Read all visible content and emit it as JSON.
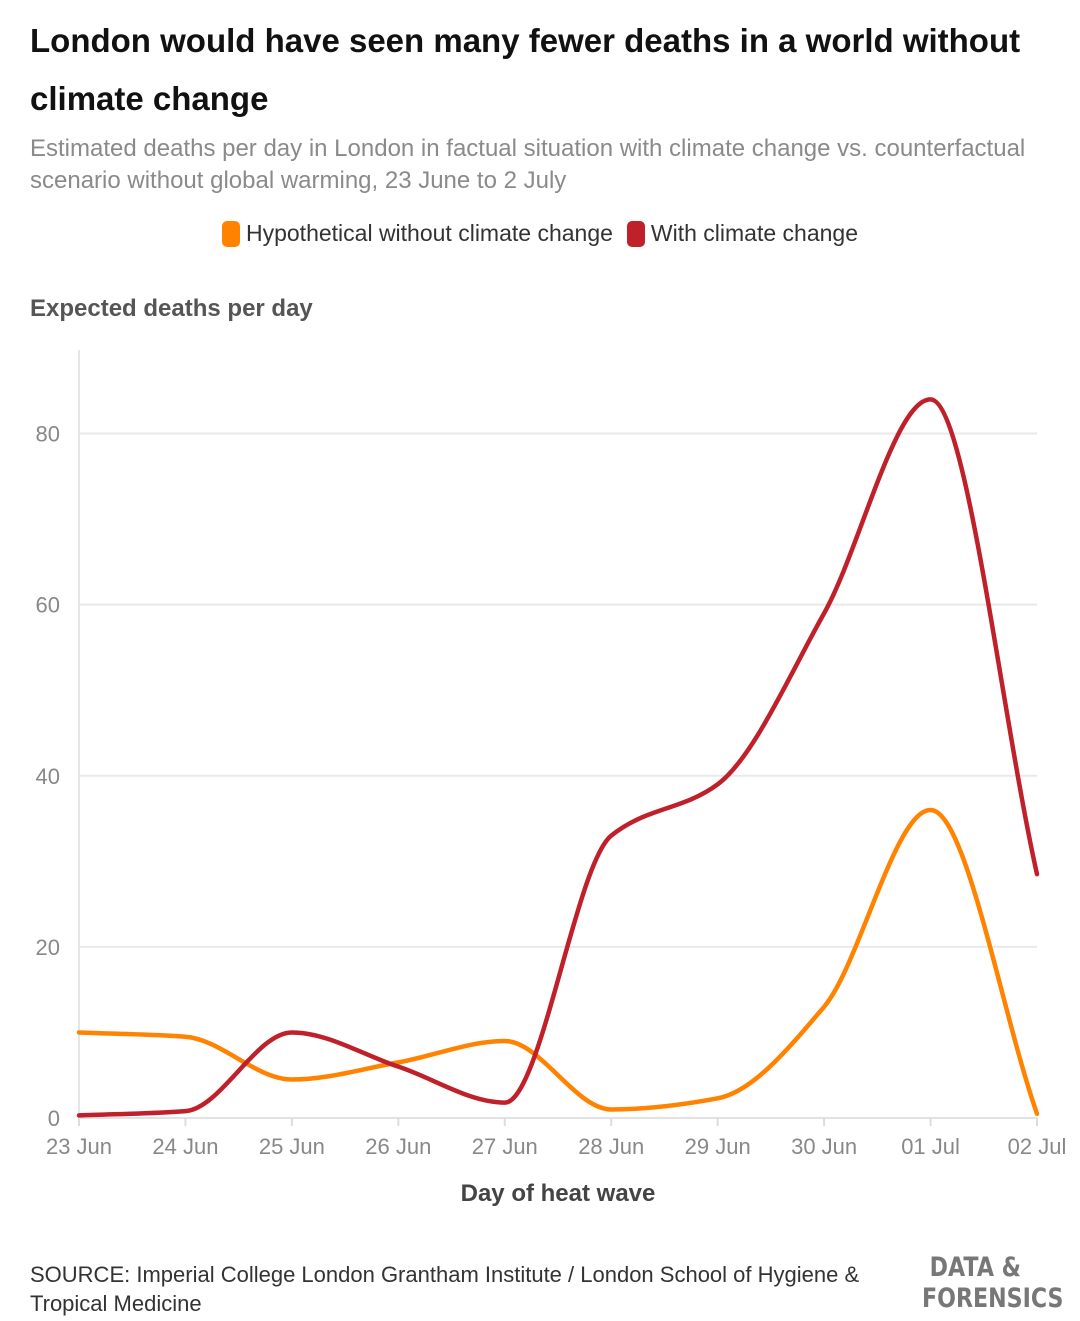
{
  "title": "London would have seen many fewer deaths in a world without climate change",
  "subtitle": "Estimated deaths per day in London in factual situation with climate change vs. counterfactual scenario without global warming, 23 June to 2 July",
  "source": "SOURCE: Imperial College London Grantham Institute / London School of Hygiene & Tropical Medicine",
  "logo": {
    "line1": "DATA &",
    "line2": "FORENSICS"
  },
  "colors": {
    "hypothetical": "#ff8200",
    "with_climate": "#c0202a",
    "grid": "#e9e9e9",
    "axis_text": "#888888"
  },
  "chart_data": {
    "type": "line",
    "xlabel": "Day of heat wave",
    "ylabel": "Expected deaths per day",
    "categories": [
      "23 Jun",
      "24 Jun",
      "25 Jun",
      "26 Jun",
      "27 Jun",
      "28 Jun",
      "29 Jun",
      "30 Jun",
      "01 Jul",
      "02 Jul"
    ],
    "ylim": [
      0,
      90
    ],
    "yticks": [
      0,
      20,
      40,
      60,
      80
    ],
    "grid": true,
    "legend_position": "top-center",
    "series": [
      {
        "name": "Hypothetical without climate change",
        "color": "#ff8200",
        "values": [
          10,
          9.5,
          4.5,
          6.5,
          9,
          1,
          2.3,
          13,
          36,
          0.5
        ]
      },
      {
        "name": "With climate change",
        "color": "#c0202a",
        "values": [
          0.3,
          0.8,
          10,
          6,
          1.8,
          33,
          39,
          59,
          84,
          28.5
        ]
      }
    ]
  }
}
